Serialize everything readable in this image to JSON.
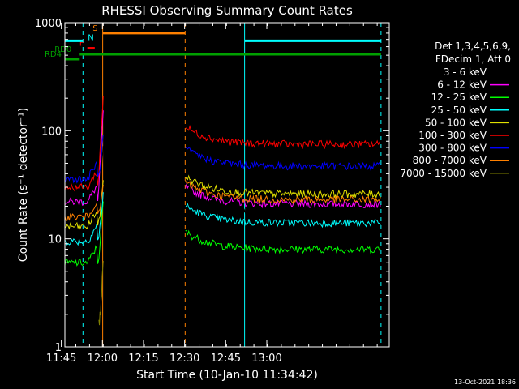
{
  "chart_data": {
    "type": "line",
    "title": "RHESSI Observing Summary Count Rates",
    "xlabel": "Start Time (10-Jan-10 11:34:42)",
    "ylabel": "Count Rate (s⁻¹ detector⁻¹)",
    "ylog": true,
    "ylim": [
      1,
      1000
    ],
    "xlim_minutes": [
      11.6,
      130.0
    ],
    "x_ticks": [
      {
        "label": "11:45",
        "minutes": 10.3
      },
      {
        "label": "12:00",
        "minutes": 25.3
      },
      {
        "label": "12:15",
        "minutes": 40.3
      },
      {
        "label": "12:30",
        "minutes": 55.3
      },
      {
        "label": "12:45",
        "minutes": 70.3
      },
      {
        "label": "13:00",
        "minutes": 85.3
      }
    ],
    "y_ticks": [
      {
        "label": "1",
        "value": 1
      },
      {
        "label": "10",
        "value": 10
      },
      {
        "label": "100",
        "value": 100
      },
      {
        "label": "1000",
        "value": 1000
      }
    ],
    "legend_header": [
      "Det 1,3,4,5,6,9,",
      "FDecim 1, Att 0"
    ],
    "legend_placement": "right",
    "timestamp": "13-Oct-2021 18:36",
    "series": [
      {
        "name": "3 - 6 keV",
        "color": "#000000",
        "pre": 17,
        "post": 17,
        "peak": 80
      },
      {
        "name": "6 - 12 keV",
        "color": "#ff00ff",
        "pre": 22,
        "post": 21,
        "peak": 170
      },
      {
        "name": "12 - 25 keV",
        "color": "#00ff00",
        "pre": 6,
        "post": 8,
        "peak": 25
      },
      {
        "name": "25 - 50 keV",
        "color": "#00ffff",
        "pre": 9.5,
        "post": 14,
        "peak": 30
      },
      {
        "name": "50 - 100 keV",
        "color": "#e0e000",
        "pre": 13,
        "post": 26,
        "peak": 40
      },
      {
        "name": "100 - 300 keV",
        "color": "#ff0000",
        "pre": 30,
        "post": 75,
        "peak": 240
      },
      {
        "name": "300 - 800 keV",
        "color": "#0000ff",
        "pre": 36,
        "post": 47,
        "peak": 100
      },
      {
        "name": "800 - 7000 keV",
        "color": "#ff8000",
        "pre": 16,
        "post": 23,
        "peak": 35
      },
      {
        "name": "7000 - 15000 keV",
        "color": "#808000",
        "pre": null,
        "post": null,
        "peak": 5
      }
    ],
    "annotations": [
      {
        "label": "RD4",
        "color": "#00a000",
        "kind": "bar",
        "start_min": 11.6,
        "end_min": 17.0,
        "y": 460
      },
      {
        "label": "RD0",
        "color": "#00a000",
        "kind": "bar",
        "start_min": 17.0,
        "end_min": 127.0,
        "y": 510
      },
      {
        "label": "F",
        "color": "#ff0000",
        "kind": "bar",
        "start_min": 19.8,
        "end_min": 22.5,
        "y": 580
      },
      {
        "label": "N",
        "color": "#00ffff",
        "kind": "bar",
        "start_min": 11.6,
        "end_min": 18.2,
        "y": 680
      },
      {
        "label": "N",
        "color": "#00ffff",
        "kind": "bar",
        "start_min": 77.2,
        "end_min": 127.0,
        "y": 680
      },
      {
        "label": "S",
        "color": "#ff8000",
        "kind": "bar",
        "start_min": 25.4,
        "end_min": 55.5,
        "y": 800
      }
    ],
    "vlines": [
      {
        "minutes": 11.6,
        "color": "#00ffff",
        "style": "solid"
      },
      {
        "minutes": 18.2,
        "color": "#00ffff",
        "style": "dashed"
      },
      {
        "minutes": 25.4,
        "color": "#ff8000",
        "style": "solid"
      },
      {
        "minutes": 55.5,
        "color": "#ff8000",
        "style": "dashed"
      },
      {
        "minutes": 77.2,
        "color": "#00ffff",
        "style": "solid"
      },
      {
        "minutes": 127.0,
        "color": "#00ffff",
        "style": "dashed"
      }
    ]
  }
}
